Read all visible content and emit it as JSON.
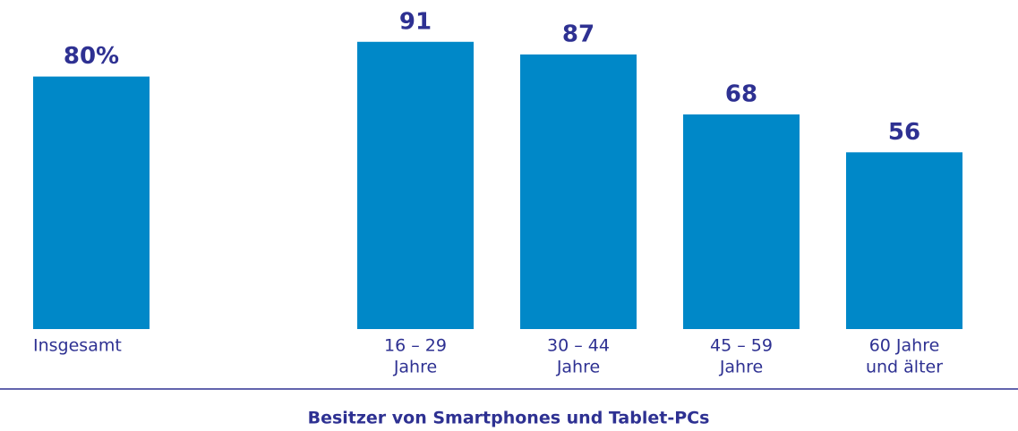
{
  "chart_data": {
    "type": "bar",
    "title": "Besitzer von Smartphones und Tablet-PCs",
    "categories": [
      [
        "Insgesamt"
      ],
      [
        "16 – 29",
        "Jahre"
      ],
      [
        "30 – 44",
        "Jahre"
      ],
      [
        "45 – 59",
        "Jahre"
      ],
      [
        "60 Jahre",
        "und älter"
      ]
    ],
    "values": [
      80,
      91,
      87,
      68,
      56
    ],
    "value_labels": [
      "80%",
      "91",
      "87",
      "68",
      "56"
    ],
    "color": "#0088c8"
  }
}
